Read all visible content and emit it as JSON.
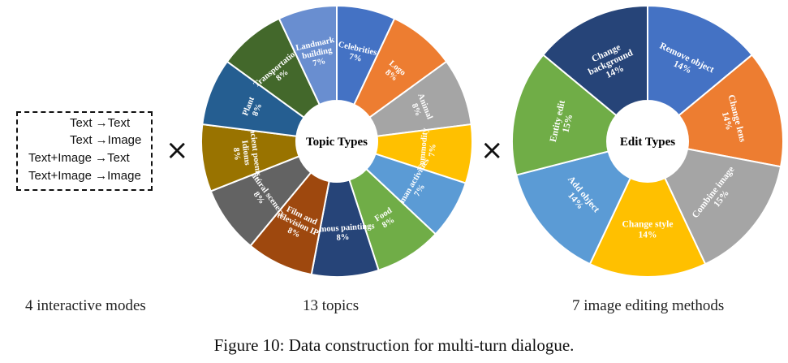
{
  "modes": {
    "items": [
      "Text →Text",
      "Text →Image",
      "Text+Image →Text",
      "Text+Image →Image"
    ],
    "caption": "4 interactive modes"
  },
  "times_symbol": "×",
  "topics": {
    "center_label": "Topic Types",
    "caption": "13 topics",
    "slices": [
      {
        "name": "Celebrities",
        "value": 7,
        "pct": "7%",
        "color": "#4472C4"
      },
      {
        "name": "Logo",
        "value": 8,
        "pct": "8%",
        "color": "#ED7D31"
      },
      {
        "name": "Animal",
        "value": 8,
        "pct": "8%",
        "color": "#A5A5A5"
      },
      {
        "name": "Commodity",
        "value": 7,
        "pct": "7%",
        "color": "#FFC000"
      },
      {
        "name": "Human activities",
        "value": 7,
        "pct": "7%",
        "color": "#5B9BD5"
      },
      {
        "name": "Food",
        "value": 8,
        "pct": "8%",
        "color": "#70AD47"
      },
      {
        "name": "Famous paintings",
        "value": 8,
        "pct": "8%",
        "color": "#264478"
      },
      {
        "name": "Film and television IP",
        "value": 8,
        "pct": "8%",
        "color": "#9E480E"
      },
      {
        "name": "Natural scenery",
        "value": 8,
        "pct": "8%",
        "color": "#636363"
      },
      {
        "name": "Ancient poems / Idioms",
        "value": 8,
        "pct": "8%",
        "color": "#997300"
      },
      {
        "name": "Plant",
        "value": 8,
        "pct": "8%",
        "color": "#255E91"
      },
      {
        "name": "Transportation",
        "value": 8,
        "pct": "8%",
        "color": "#43682B"
      },
      {
        "name": "Landmark building",
        "value": 7,
        "pct": "7%",
        "color": "#698ED0"
      }
    ]
  },
  "edits": {
    "center_label": "Edit Types",
    "caption": "7 image editing methods",
    "slices": [
      {
        "name": "Remove object",
        "value": 14,
        "pct": "14%",
        "color": "#4472C4"
      },
      {
        "name": "Change lens",
        "value": 14,
        "pct": "14%",
        "color": "#ED7D31"
      },
      {
        "name": "Combine image",
        "value": 15,
        "pct": "15%",
        "color": "#A5A5A5"
      },
      {
        "name": "Change style",
        "value": 14,
        "pct": "14%",
        "color": "#FFC000"
      },
      {
        "name": "Add object",
        "value": 14,
        "pct": "14%",
        "color": "#5B9BD5"
      },
      {
        "name": "Entity edit",
        "value": 15,
        "pct": "15%",
        "color": "#70AD47"
      },
      {
        "name": "Change background",
        "value": 14,
        "pct": "14%",
        "color": "#264478"
      }
    ]
  },
  "figure_caption": "Figure 10: Data construction for multi-turn dialogue."
}
